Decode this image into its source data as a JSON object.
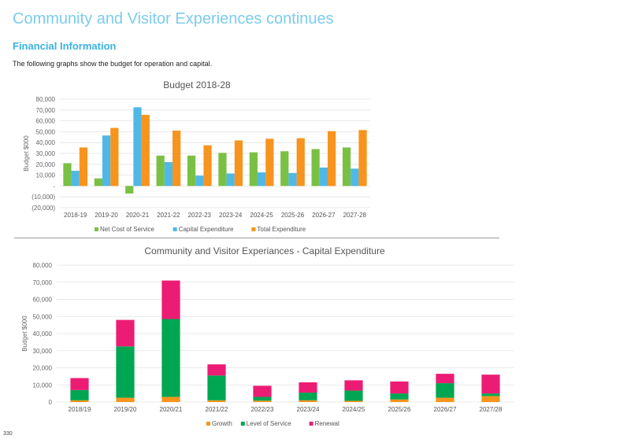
{
  "page": {
    "heading": "Community and Visitor Experiences continues",
    "section_heading": "Financial Information",
    "intro": "The following graphs show the budget for operation and capital.",
    "page_number": "330"
  },
  "chart_data": [
    {
      "type": "bar",
      "title": "Budget 2018-28",
      "ylabel": "Budget $000",
      "xlabel": "",
      "ylim": [
        -20000,
        80000
      ],
      "yticks": [
        80000,
        70000,
        60000,
        50000,
        40000,
        30000,
        20000,
        10000,
        0,
        -10000,
        -20000
      ],
      "ytick_labels": [
        "80,000",
        "70,000",
        "60,000",
        "50,000",
        "40,000",
        "30,000",
        "20,000",
        "10,000",
        "-",
        "(10,000)",
        "(20,000)"
      ],
      "grid": true,
      "legend": "bottom",
      "categories": [
        "2018-19",
        "2019-20",
        "2020-21",
        "2021-22",
        "2022-23",
        "2023-24",
        "2024-25",
        "2025-26",
        "2026-27",
        "2027-28"
      ],
      "series": [
        {
          "name": "Net Cost of Service",
          "color": "#7ac143",
          "values": [
            21000,
            7000,
            -7000,
            28000,
            28000,
            30500,
            31000,
            32000,
            34000,
            35500
          ]
        },
        {
          "name": "Capital Expenditure",
          "color": "#4fb8e6",
          "values": [
            14000,
            46500,
            72500,
            22000,
            9500,
            11500,
            12500,
            12000,
            17000,
            16000
          ]
        },
        {
          "name": "Total Expenditure",
          "color": "#f7941d",
          "values": [
            35500,
            53500,
            65500,
            51000,
            37500,
            42000,
            43500,
            44000,
            50500,
            51500
          ]
        }
      ]
    },
    {
      "type": "bar",
      "stacked": true,
      "title": "Community and Visitor Experiances - Capital Expenditure",
      "ylabel": "Budget $000",
      "xlabel": "",
      "ylim": [
        0,
        80000
      ],
      "yticks": [
        80000,
        70000,
        60000,
        50000,
        40000,
        30000,
        20000,
        10000,
        0
      ],
      "ytick_labels": [
        "80,000",
        "70,000",
        "60,000",
        "50,000",
        "40,000",
        "30,000",
        "20,000",
        "10,000",
        "0"
      ],
      "grid": true,
      "legend": "bottom",
      "categories": [
        "2018/19",
        "2019/20",
        "2020/21",
        "2021/22",
        "2022/23",
        "2023/24",
        "2024/25",
        "2025/26",
        "2026/27",
        "2027/28"
      ],
      "series": [
        {
          "name": "Growth",
          "color": "#f7941d",
          "values": [
            1000,
            2500,
            3000,
            1000,
            800,
            1000,
            700,
            1500,
            2500,
            3500
          ]
        },
        {
          "name": "Level of Service",
          "color": "#00a651",
          "values": [
            6000,
            30000,
            45500,
            14500,
            2200,
            4500,
            6000,
            3500,
            8500,
            1500
          ]
        },
        {
          "name": "Renewal",
          "color": "#ec1c74",
          "values": [
            7000,
            15500,
            22500,
            6500,
            6500,
            6000,
            6000,
            7000,
            5500,
            11000
          ]
        }
      ]
    }
  ]
}
